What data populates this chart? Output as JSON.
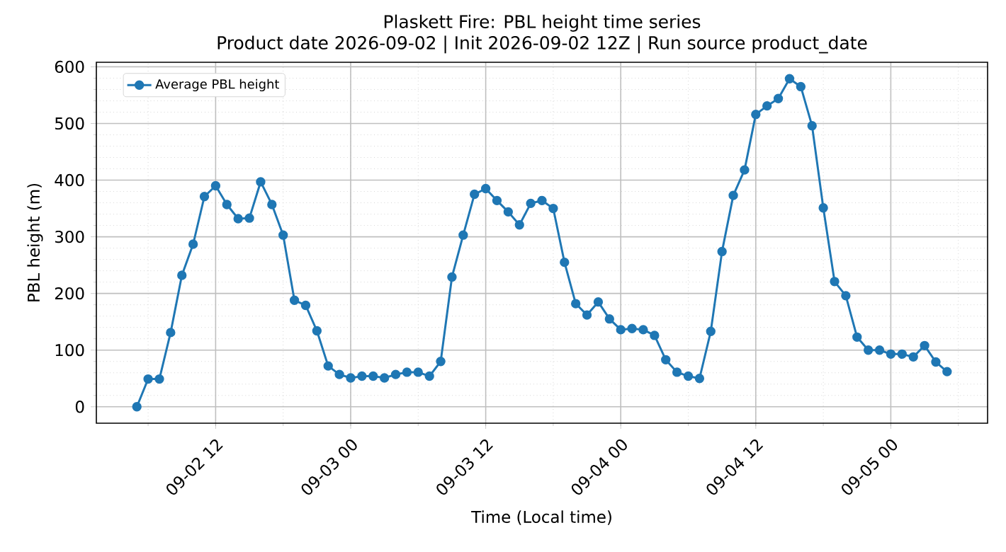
{
  "chart_data": {
    "type": "line",
    "title": "Plaskett Fire: PBL height time series",
    "subtitle": "Product date 2026-09-02 | Init 2026-09-02 12Z | Run source product_date",
    "xlabel": "Time (Local time)",
    "ylabel": "PBL height (m)",
    "x": [
      "2026-09-02T05:00",
      "2026-09-02T06:00",
      "2026-09-02T07:00",
      "2026-09-02T08:00",
      "2026-09-02T09:00",
      "2026-09-02T10:00",
      "2026-09-02T11:00",
      "2026-09-02T12:00",
      "2026-09-02T13:00",
      "2026-09-02T14:00",
      "2026-09-02T15:00",
      "2026-09-02T16:00",
      "2026-09-02T17:00",
      "2026-09-02T18:00",
      "2026-09-02T19:00",
      "2026-09-02T20:00",
      "2026-09-02T21:00",
      "2026-09-02T22:00",
      "2026-09-02T23:00",
      "2026-09-03T00:00",
      "2026-09-03T01:00",
      "2026-09-03T02:00",
      "2026-09-03T03:00",
      "2026-09-03T04:00",
      "2026-09-03T05:00",
      "2026-09-03T06:00",
      "2026-09-03T07:00",
      "2026-09-03T08:00",
      "2026-09-03T09:00",
      "2026-09-03T10:00",
      "2026-09-03T11:00",
      "2026-09-03T12:00",
      "2026-09-03T13:00",
      "2026-09-03T14:00",
      "2026-09-03T15:00",
      "2026-09-03T16:00",
      "2026-09-03T17:00",
      "2026-09-03T18:00",
      "2026-09-03T19:00",
      "2026-09-03T20:00",
      "2026-09-03T21:00",
      "2026-09-03T22:00",
      "2026-09-03T23:00",
      "2026-09-04T00:00",
      "2026-09-04T01:00",
      "2026-09-04T02:00",
      "2026-09-04T03:00",
      "2026-09-04T04:00",
      "2026-09-04T05:00",
      "2026-09-04T06:00",
      "2026-09-04T07:00",
      "2026-09-04T08:00",
      "2026-09-04T09:00",
      "2026-09-04T10:00",
      "2026-09-04T11:00",
      "2026-09-04T12:00",
      "2026-09-04T13:00",
      "2026-09-04T14:00",
      "2026-09-04T15:00",
      "2026-09-04T16:00",
      "2026-09-04T17:00",
      "2026-09-04T18:00",
      "2026-09-04T19:00",
      "2026-09-04T20:00",
      "2026-09-04T21:00",
      "2026-09-04T22:00",
      "2026-09-04T23:00",
      "2026-09-05T00:00",
      "2026-09-05T01:00",
      "2026-09-05T02:00",
      "2026-09-05T03:00",
      "2026-09-05T04:00",
      "2026-09-05T05:00"
    ],
    "series": [
      {
        "name": "Average PBL height",
        "color": "#1f77b4",
        "values": [
          0,
          49,
          49,
          131,
          232,
          287,
          371,
          390,
          357,
          332,
          333,
          397,
          357,
          303,
          188,
          179,
          134,
          72,
          57,
          51,
          54,
          54,
          51,
          57,
          61,
          61,
          54,
          80,
          229,
          303,
          375,
          385,
          364,
          344,
          321,
          359,
          364,
          350,
          255,
          182,
          162,
          185,
          155,
          136,
          138,
          136,
          126,
          83,
          61,
          54,
          50,
          133,
          274,
          373,
          418,
          516,
          531,
          544,
          579,
          565,
          496,
          351,
          221,
          196,
          123,
          100,
          100,
          93,
          93,
          88,
          108,
          79,
          62
        ]
      }
    ],
    "xlim": [
      "2026-09-02T01:24",
      "2026-09-05T08:36"
    ],
    "xticks": [
      {
        "value": "2026-09-02T12:00",
        "label": "09-02 12"
      },
      {
        "value": "2026-09-03T00:00",
        "label": "09-03 00"
      },
      {
        "value": "2026-09-03T12:00",
        "label": "09-03 12"
      },
      {
        "value": "2026-09-04T00:00",
        "label": "09-04 00"
      },
      {
        "value": "2026-09-04T12:00",
        "label": "09-04 12"
      },
      {
        "value": "2026-09-05T00:00",
        "label": "09-05 00"
      }
    ],
    "ylim": [
      -29,
      608
    ],
    "yticks": [
      0,
      100,
      200,
      300,
      400,
      500,
      600
    ],
    "grid": true,
    "legend": "top left",
    "marker": "circle",
    "line_style": "solid"
  }
}
